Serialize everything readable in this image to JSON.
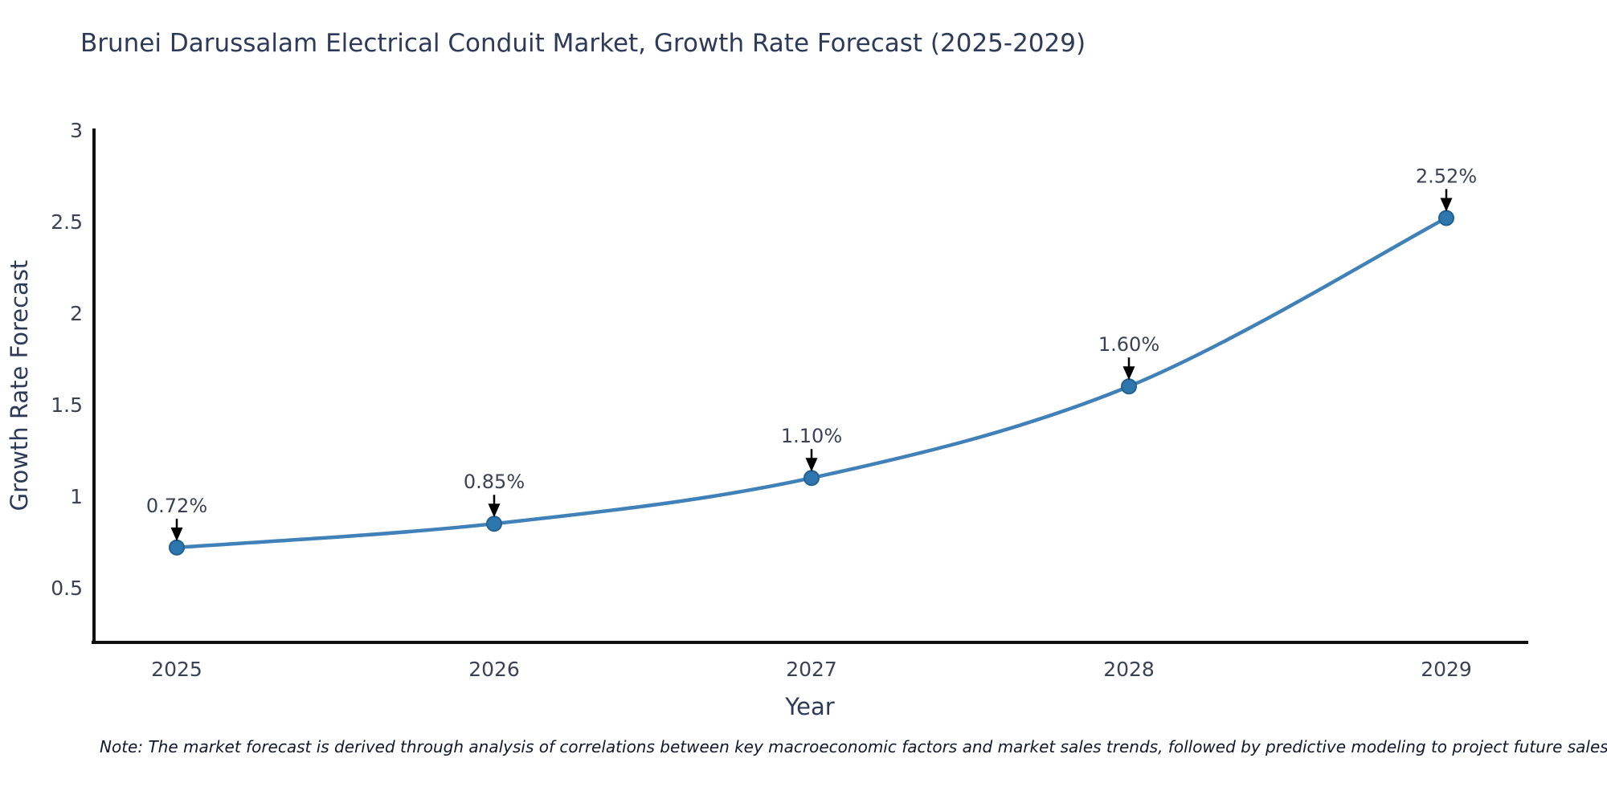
{
  "title": "Brunei Darussalam Electrical Conduit Market, Growth Rate Forecast (2025-2029)",
  "note": "Note: The market forecast is derived through analysis of correlations between key macroeconomic factors and market sales trends, followed by predictive modeling to project future sales",
  "chart_data": {
    "type": "line",
    "title": "Brunei Darussalam Electrical Conduit Market, Growth Rate Forecast (2025-2029)",
    "xlabel": "Year",
    "ylabel": "Growth Rate Forecast",
    "categories": [
      "2025",
      "2026",
      "2027",
      "2028",
      "2029"
    ],
    "series": [
      {
        "name": "Growth Rate Forecast",
        "values": [
          0.72,
          0.85,
          1.1,
          1.6,
          2.52
        ],
        "point_labels": [
          "0.72%",
          "0.85%",
          "1.10%",
          "1.60%",
          "2.52%"
        ]
      }
    ],
    "yticks": [
      0.5,
      1,
      1.5,
      2,
      2.5,
      3
    ],
    "ylim": [
      0.2,
      3.0
    ],
    "grid": false,
    "legend_position": "none",
    "line_smoothing": "spline",
    "colors": {
      "line": "#3f81b8",
      "marker_fill": "#2e77ae",
      "marker_edge": "#23608f",
      "annotation_arrow": "#000000",
      "axis_spine": "#111111",
      "tick_text": "#3b4256",
      "axis_label_text": "#2e3a59"
    }
  }
}
